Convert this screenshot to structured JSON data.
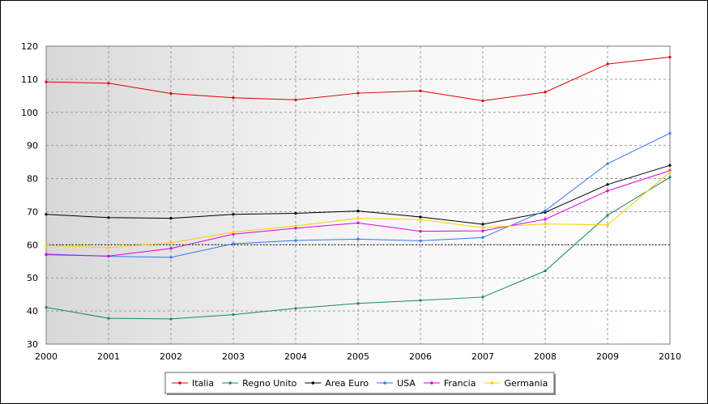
{
  "chart_data": {
    "type": "line",
    "title": "",
    "xlabel": "",
    "ylabel": "",
    "x": [
      "2000",
      "2001",
      "2002",
      "2003",
      "2004",
      "2005",
      "2006",
      "2007",
      "2008",
      "2009",
      "2010"
    ],
    "ylim": [
      30,
      120
    ],
    "yticks": [
      30,
      40,
      50,
      60,
      70,
      80,
      90,
      100,
      110,
      120
    ],
    "reference_line": {
      "value": 60,
      "style": "dotted",
      "color": "#000000"
    },
    "grid": true,
    "legend_position": "bottom",
    "series": [
      {
        "name": "Italia",
        "color": "#dd0000",
        "values": [
          109.2,
          108.8,
          105.7,
          104.4,
          103.8,
          105.8,
          106.5,
          103.5,
          106.1,
          114.6,
          116.7
        ]
      },
      {
        "name": "Regno Unito",
        "color": "#1a8a5a",
        "values": [
          41.1,
          37.8,
          37.6,
          38.9,
          40.8,
          42.3,
          43.2,
          44.2,
          52.1,
          68.9,
          80.4
        ]
      },
      {
        "name": "Area Euro",
        "color": "#000000",
        "values": [
          69.2,
          68.2,
          68.0,
          69.2,
          69.5,
          70.2,
          68.4,
          66.2,
          69.8,
          78.2,
          84.0
        ]
      },
      {
        "name": "USA",
        "color": "#3377ee",
        "values": [
          57.2,
          56.5,
          56.2,
          60.3,
          61.3,
          61.7,
          61.2,
          62.2,
          70.3,
          84.5,
          93.7
        ]
      },
      {
        "name": "Francia",
        "color": "#dd00dd",
        "values": [
          57.0,
          56.6,
          58.9,
          63.2,
          65.0,
          66.6,
          64.1,
          64.2,
          67.7,
          76.3,
          82.4
        ]
      },
      {
        "name": "Germania",
        "color": "#ffcc00",
        "values": [
          59.8,
          59.1,
          60.6,
          63.8,
          65.7,
          68.0,
          67.6,
          65.2,
          66.3,
          66.0,
          82.0
        ]
      }
    ]
  }
}
